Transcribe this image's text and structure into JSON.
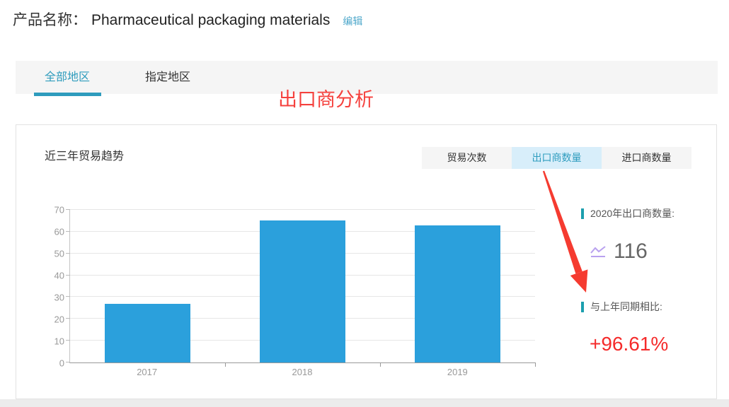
{
  "header": {
    "label": "产品名称：",
    "product_name": "Pharmaceutical packaging materials",
    "edit_label": "编辑"
  },
  "tabs": [
    {
      "label": "全部地区",
      "active": true
    },
    {
      "label": "指定地区",
      "active": false
    }
  ],
  "annotation": {
    "text": "出口商分析"
  },
  "panel": {
    "title": "近三年贸易趋势",
    "buttons": [
      {
        "label": "贸易次数",
        "active": false
      },
      {
        "label": "出口商数量",
        "active": true
      },
      {
        "label": "进口商数量",
        "active": false
      }
    ],
    "stats": [
      {
        "label": "2020年出口商数量:",
        "value": "116",
        "icon": "trend-line-icon"
      },
      {
        "label": "与上年同期相比:",
        "value": "+96.61%"
      }
    ]
  },
  "chart_data": {
    "type": "bar",
    "categories": [
      "2017",
      "2018",
      "2019"
    ],
    "values": [
      27,
      65,
      63
    ],
    "title": "近三年贸易趋势",
    "xlabel": "",
    "ylabel": "",
    "ylim": [
      0,
      70
    ],
    "ytick_interval": 10,
    "bar_color": "#2ba0dc",
    "grid": true,
    "legend": false
  },
  "colors": {
    "accent_teal": "#2e9cbd",
    "active_button_bg": "#d8eefa",
    "button_bg": "#f5f5f5",
    "bar_blue": "#2ba0dc",
    "annotation_red": "#f5413d",
    "value_red": "#f52b2b",
    "marker_teal": "#1c9fae",
    "icon_purple": "#b9a1ef",
    "value_gray": "#666666"
  }
}
